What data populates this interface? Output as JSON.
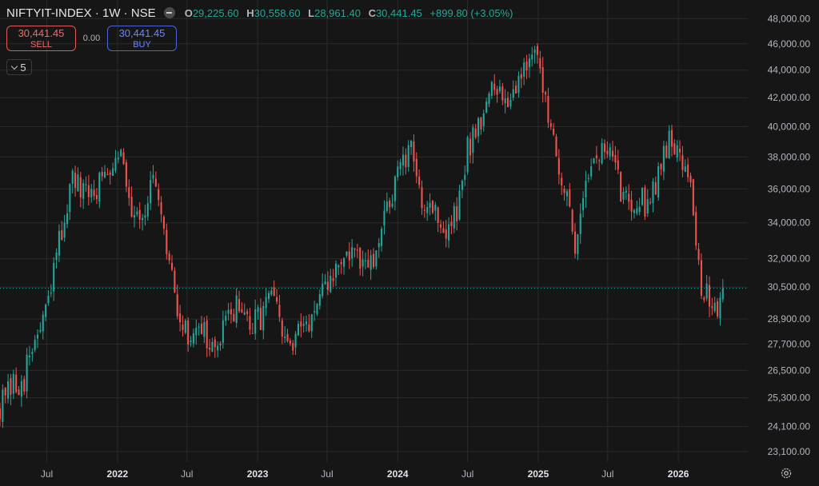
{
  "header": {
    "symbol": "NIFTYIT-INDEX · 1W · NSE",
    "ohlc": {
      "o_label": "O",
      "o": "29,225.60",
      "h_label": "H",
      "h": "30,558.60",
      "l_label": "L",
      "l": "28,961.40",
      "c_label": "C",
      "c": "30,441.45",
      "change": "+899.80 (+3.05%)"
    }
  },
  "trade": {
    "sell_price": "30,441.45",
    "sell_label": "SELL",
    "spread": "0.00",
    "buy_price": "30,441.45",
    "buy_label": "BUY"
  },
  "indicator_count": "5",
  "icons": {
    "hide": "minus-circle-icon",
    "expand": "chevron-down-icon",
    "settings": "gear-icon"
  },
  "colors": {
    "up": "#26a69a",
    "down": "#ef5350",
    "background": "#161616",
    "grid": "#2a2a2a",
    "price_line": "#26a69a"
  },
  "chart_data": {
    "type": "candlestick",
    "interval": "1W",
    "scale": "log",
    "y_ticks": [
      48000,
      46000,
      44000,
      42000,
      40000,
      38000,
      36000,
      34000,
      32000,
      30500,
      28900,
      27700,
      26500,
      25300,
      24100,
      23100
    ],
    "y_tick_labels": [
      "48,000.00",
      "46,000.00",
      "44,000.00",
      "42,000.00",
      "40,000.00",
      "38,000.00",
      "36,000.00",
      "34,000.00",
      "32,000.00",
      "30,500.00",
      "28,900.00",
      "27,700.00",
      "26,500.00",
      "25,300.00",
      "24,100.00",
      "23,100.00"
    ],
    "x_ticks": [
      {
        "label": "Jul",
        "date": "2021-07-01",
        "bold": false
      },
      {
        "label": "2022",
        "date": "2022-01-01",
        "bold": true
      },
      {
        "label": "Jul",
        "date": "2022-07-01",
        "bold": false
      },
      {
        "label": "2023",
        "date": "2023-01-01",
        "bold": true
      },
      {
        "label": "Jul",
        "date": "2023-07-01",
        "bold": false
      },
      {
        "label": "2024",
        "date": "2024-01-01",
        "bold": true
      },
      {
        "label": "Jul",
        "date": "2024-07-01",
        "bold": false
      },
      {
        "label": "2025",
        "date": "2025-01-01",
        "bold": true
      },
      {
        "label": "Jul",
        "date": "2025-07-01",
        "bold": false
      },
      {
        "label": "2026",
        "date": "2026-01-01",
        "bold": true
      }
    ],
    "x_range": [
      "2021-03-01",
      "2026-07-01"
    ],
    "y_range": [
      22700,
      49000
    ],
    "last_price": 30441.45,
    "close_path": [
      [
        "2021-03-01",
        25000
      ],
      [
        "2021-04-05",
        25700
      ],
      [
        "2021-05-03",
        26200
      ],
      [
        "2021-06-07",
        28200
      ],
      [
        "2021-07-05",
        29500
      ],
      [
        "2021-08-02",
        33000
      ],
      [
        "2021-09-06",
        36500
      ],
      [
        "2021-10-04",
        35500
      ],
      [
        "2021-11-01",
        35800
      ],
      [
        "2021-12-06",
        37200
      ],
      [
        "2022-01-03",
        38900
      ],
      [
        "2022-02-07",
        35000
      ],
      [
        "2022-03-07",
        34600
      ],
      [
        "2022-04-04",
        36400
      ],
      [
        "2022-05-02",
        33000
      ],
      [
        "2022-06-06",
        29500
      ],
      [
        "2022-07-04",
        27800
      ],
      [
        "2022-08-01",
        29000
      ],
      [
        "2022-09-05",
        27200
      ],
      [
        "2022-10-03",
        28200
      ],
      [
        "2022-11-07",
        29800
      ],
      [
        "2022-12-05",
        28500
      ],
      [
        "2023-01-02",
        28800
      ],
      [
        "2023-02-06",
        30300
      ],
      [
        "2023-03-06",
        28000
      ],
      [
        "2023-04-03",
        27500
      ],
      [
        "2023-05-08",
        28900
      ],
      [
        "2023-06-05",
        29300
      ],
      [
        "2023-07-03",
        30600
      ],
      [
        "2023-08-07",
        32000
      ],
      [
        "2023-09-04",
        32300
      ],
      [
        "2023-10-02",
        31400
      ],
      [
        "2023-11-06",
        31800
      ],
      [
        "2023-12-04",
        35000
      ],
      [
        "2024-01-08",
        37300
      ],
      [
        "2024-02-05",
        38200
      ],
      [
        "2024-03-04",
        35500
      ],
      [
        "2024-04-01",
        35000
      ],
      [
        "2024-05-06",
        33300
      ],
      [
        "2024-06-03",
        34500
      ],
      [
        "2024-07-01",
        38500
      ],
      [
        "2024-08-05",
        40800
      ],
      [
        "2024-09-02",
        42300
      ],
      [
        "2024-10-07",
        42200
      ],
      [
        "2024-11-04",
        42800
      ],
      [
        "2024-12-09",
        45500
      ],
      [
        "2025-01-06",
        43600
      ],
      [
        "2025-02-03",
        40500
      ],
      [
        "2025-03-03",
        36500
      ],
      [
        "2025-04-07",
        32800
      ],
      [
        "2025-05-05",
        37000
      ],
      [
        "2025-06-02",
        37900
      ],
      [
        "2025-07-07",
        38600
      ],
      [
        "2025-08-04",
        35800
      ],
      [
        "2025-09-01",
        35500
      ],
      [
        "2025-10-06",
        35200
      ],
      [
        "2025-11-03",
        36500
      ],
      [
        "2025-12-01",
        38800
      ],
      [
        "2026-01-05",
        38800
      ],
      [
        "2026-02-02",
        36000
      ],
      [
        "2026-03-02",
        30500
      ],
      [
        "2026-04-06",
        29300
      ],
      [
        "2026-04-27",
        30441.45
      ]
    ]
  }
}
